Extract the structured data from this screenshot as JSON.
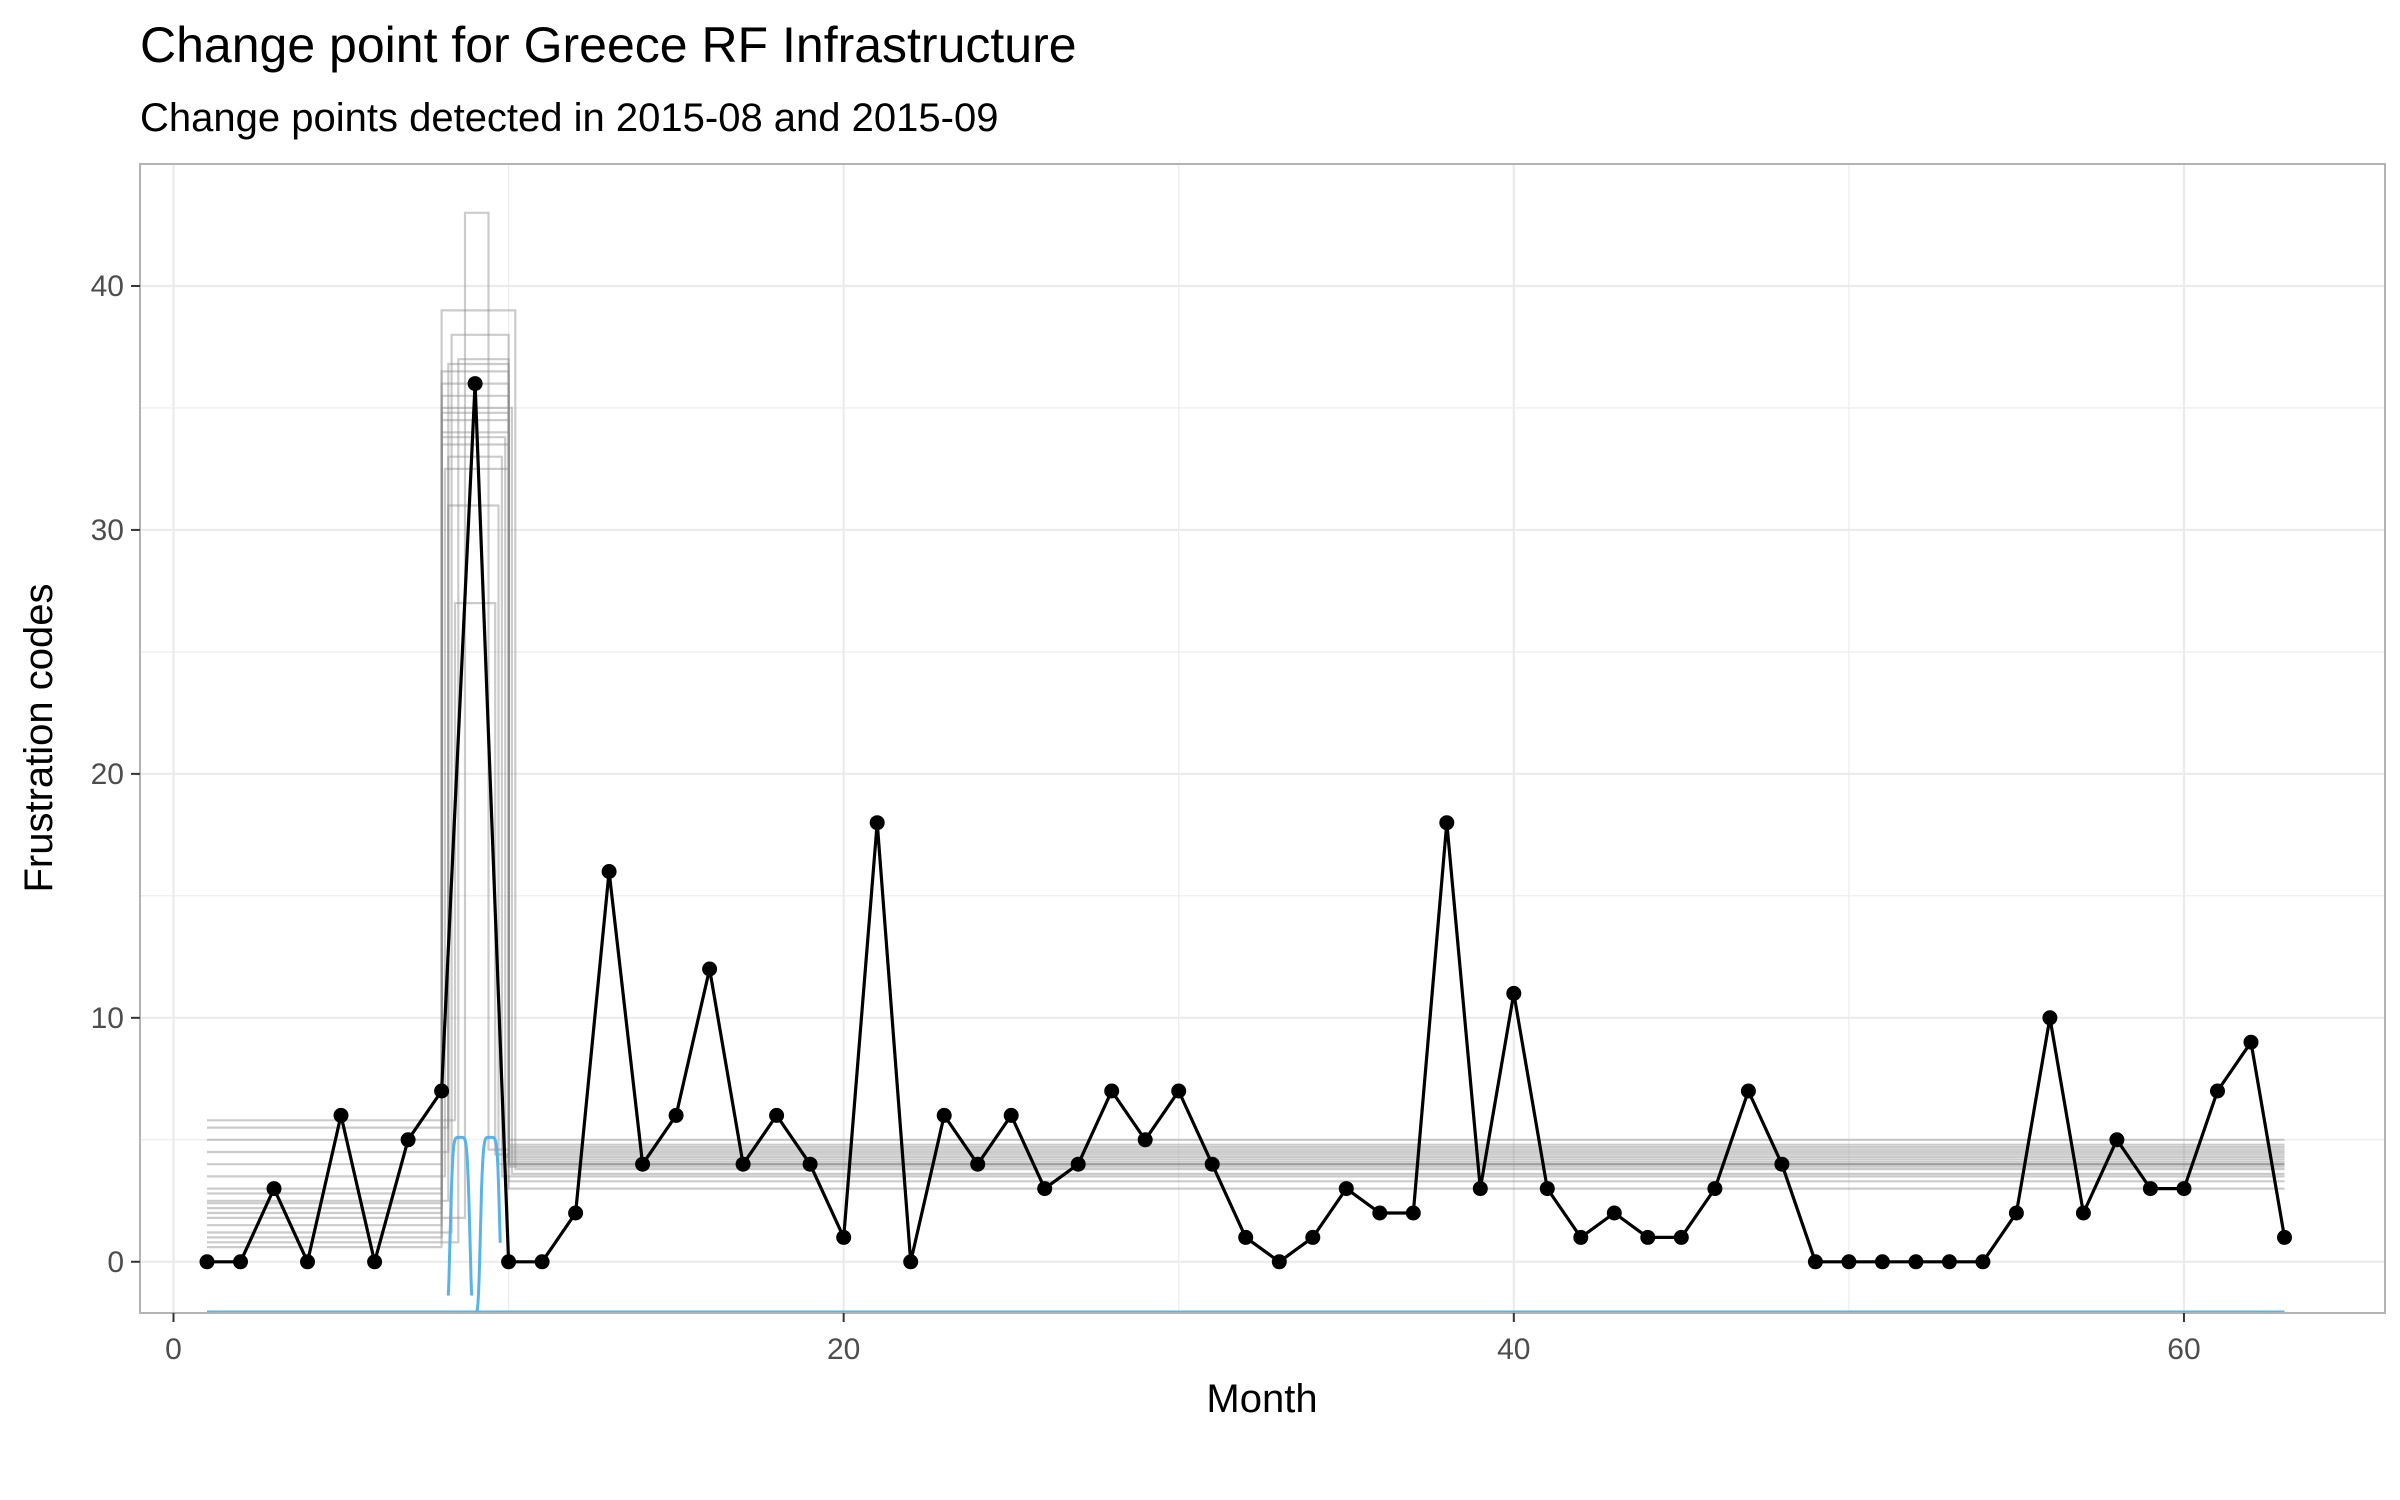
{
  "chart_data": {
    "type": "line",
    "title": "Change point for Greece RF Infrastructure",
    "subtitle": "Change points detected in 2015-08 and 2015-09",
    "xlabel": "Month",
    "ylabel": "Frustration codes",
    "xlim": [
      -1,
      66
    ],
    "ylim": [
      -2.1,
      45
    ],
    "x_ticks": [
      0,
      20,
      40,
      60
    ],
    "y_ticks": [
      0,
      10,
      20,
      30,
      40
    ],
    "grid": true,
    "legend": "none",
    "colors": {
      "observed": "#000000",
      "posterior_fit": "#8c8c8c",
      "change_point_density": "#56b4e9",
      "gridline": "#ebebeb",
      "panel_border": "#b3b3b3"
    },
    "series": [
      {
        "kind": "observed",
        "x": [
          1,
          2,
          3,
          4,
          5,
          6,
          7,
          8,
          9,
          10,
          11,
          12,
          13,
          14,
          15,
          16,
          17,
          18,
          19,
          20,
          21,
          22,
          23,
          24,
          25,
          26,
          27,
          28,
          29,
          30,
          31,
          32,
          33,
          34,
          35,
          36,
          37,
          38,
          39,
          40,
          41,
          42,
          43,
          44,
          45,
          46,
          47,
          48,
          49,
          50,
          51,
          52,
          53,
          54,
          55,
          56,
          57,
          58,
          59,
          60,
          61,
          62,
          63
        ],
        "y": [
          0,
          0,
          3,
          0,
          6,
          0,
          5,
          7,
          36,
          0,
          0,
          2,
          16,
          4,
          6,
          12,
          4,
          6,
          4,
          1,
          18,
          0,
          6,
          4,
          6,
          3,
          4,
          7,
          5,
          7,
          4,
          1,
          0,
          1,
          3,
          2,
          2,
          18,
          3,
          11,
          3,
          1,
          2,
          1,
          1,
          3,
          7,
          4,
          0,
          0,
          0,
          0,
          0,
          0,
          2,
          10,
          2,
          5,
          3,
          3,
          7,
          9,
          1
        ]
      }
    ],
    "posterior_fits": {
      "start_x": 1,
      "end_x": 63,
      "draws": [
        {
          "before": 2.0,
          "cp1": 8.0,
          "peak": 34.0,
          "cp2": 10.0,
          "after": 4.0
        },
        {
          "before": 1.5,
          "cp1": 8.0,
          "peak": 36.5,
          "cp2": 10.0,
          "after": 4.5
        },
        {
          "before": 2.5,
          "cp1": 8.2,
          "peak": 33.0,
          "cp2": 9.8,
          "after": 3.5
        },
        {
          "before": 3.0,
          "cp1": 8.0,
          "peak": 35.5,
          "cp2": 10.0,
          "after": 5.0
        },
        {
          "before": 1.2,
          "cp1": 8.3,
          "peak": 38.0,
          "cp2": 10.0,
          "after": 4.2
        },
        {
          "before": 2.2,
          "cp1": 8.0,
          "peak": 39.0,
          "cp2": 10.2,
          "after": 3.8
        },
        {
          "before": 5.5,
          "cp1": 8.2,
          "peak": 31.0,
          "cp2": 9.7,
          "after": 4.0
        },
        {
          "before": 4.0,
          "cp1": 8.0,
          "peak": 34.5,
          "cp2": 10.0,
          "after": 3.0
        },
        {
          "before": 0.8,
          "cp1": 8.5,
          "peak": 37.0,
          "cp2": 10.0,
          "after": 4.8
        },
        {
          "before": 2.8,
          "cp1": 8.0,
          "peak": 33.8,
          "cp2": 9.9,
          "after": 4.3
        },
        {
          "before": 5.0,
          "cp1": 8.0,
          "peak": 35.0,
          "cp2": 10.1,
          "after": 3.6
        },
        {
          "before": 1.8,
          "cp1": 8.7,
          "peak": 43.0,
          "cp2": 9.4,
          "after": 4.6
        },
        {
          "before": 3.5,
          "cp1": 8.1,
          "peak": 32.5,
          "cp2": 10.0,
          "after": 4.1
        },
        {
          "before": 2.4,
          "cp1": 8.0,
          "peak": 36.0,
          "cp2": 10.0,
          "after": 3.9
        },
        {
          "before": 5.8,
          "cp1": 8.4,
          "peak": 27.0,
          "cp2": 9.6,
          "after": 4.4
        },
        {
          "before": 0.6,
          "cp1": 8.0,
          "peak": 34.8,
          "cp2": 10.0,
          "after": 4.0
        },
        {
          "before": 4.5,
          "cp1": 8.2,
          "peak": 36.8,
          "cp2": 10.0,
          "after": 3.3
        },
        {
          "before": 1.0,
          "cp1": 8.0,
          "peak": 33.5,
          "cp2": 10.0,
          "after": 4.7
        }
      ]
    },
    "change_point_density": {
      "baseline": -2.1,
      "peak": 5.1,
      "cp1": {
        "center": 8.55,
        "rise": 8.2,
        "fall": 8.9
      },
      "cp2": {
        "center": 9.45,
        "rise": 9.05,
        "fall": 9.75
      },
      "end_x": 63
    }
  }
}
